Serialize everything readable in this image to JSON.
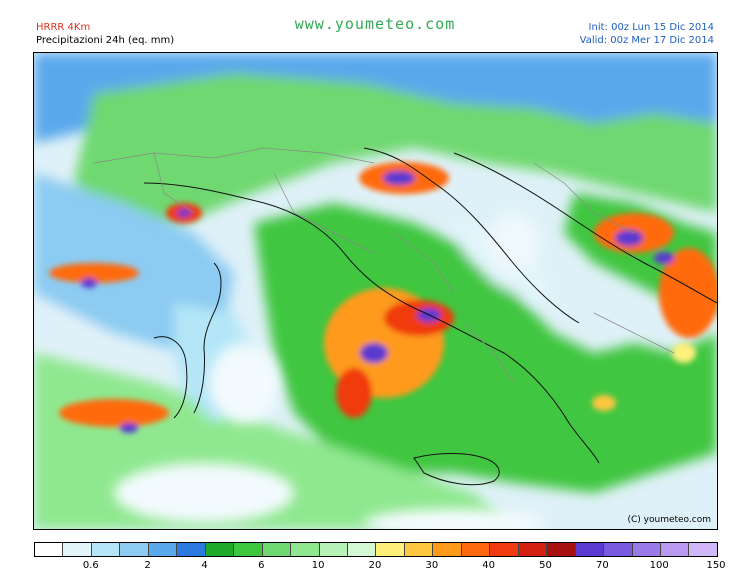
{
  "header": {
    "model": "HRRR 4Km",
    "product": "Precipitazioni 24h (eq. mm)",
    "site": "www.youmeteo.com",
    "init": "Init: 00z Lun  15 Dic 2014",
    "valid": "Valid: 00z Mer  17 Dic 2014"
  },
  "map": {
    "copyright": "(C) youmeteo.com",
    "icon": "precipitation-map"
  },
  "legend": {
    "colors": [
      "#ffffff",
      "#e2f5fb",
      "#b4e6f7",
      "#8ccbf2",
      "#5aa8ec",
      "#2b7ae0",
      "#1faa2a",
      "#3fc63f",
      "#6fd86f",
      "#8fe88f",
      "#b7f2b7",
      "#d4f7d4",
      "#fff07a",
      "#ffc640",
      "#ff9a1a",
      "#ff6a10",
      "#f03a10",
      "#d42010",
      "#a81010",
      "#5a3ad0",
      "#7a5ae0",
      "#9a7ae8",
      "#b89af0",
      "#d0b8f8"
    ],
    "ticks": [
      "0.6",
      "2",
      "4",
      "6",
      "10",
      "20",
      "30",
      "40",
      "50",
      "70",
      "100",
      "150"
    ]
  }
}
